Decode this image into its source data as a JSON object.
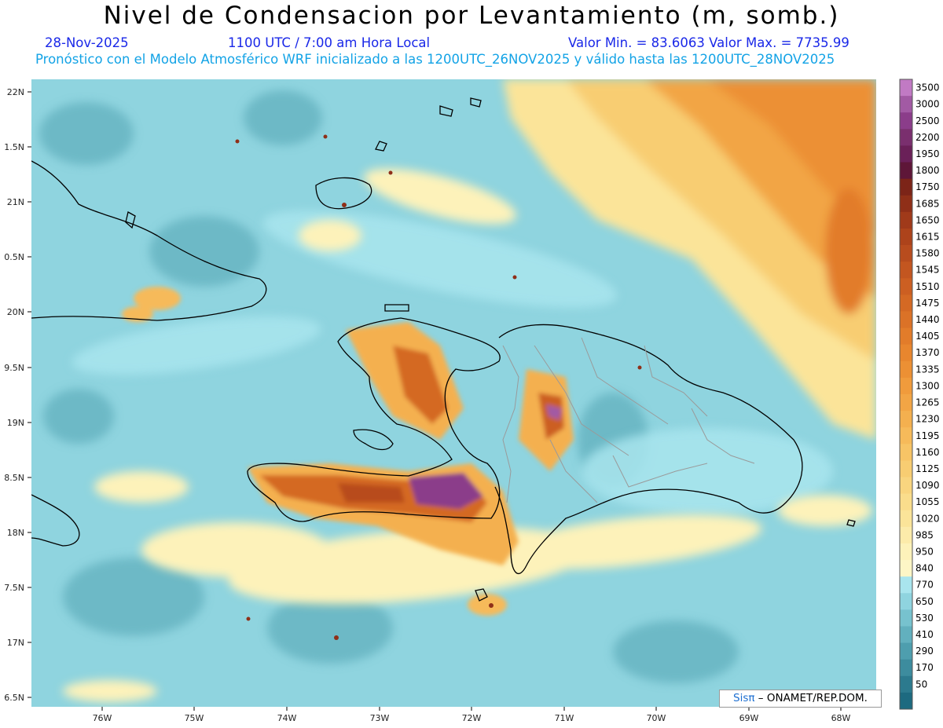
{
  "header": {
    "title": "Nivel de Condensacion por Levantamiento (m, somb.)",
    "date": "28-Nov-2025",
    "time": "1100 UTC / 7:00 am Hora Local",
    "min_max": "Valor Min. = 83.6063  Valor Max. = 7735.99",
    "forecast": "Pronóstico con el Modelo Atmosférico WRF inicializado a las 1200UTC_26NOV2025 y válido hasta las  1200UTC_28NOV2025"
  },
  "credit": {
    "logo": "Sisπ",
    "text": "– ONAMET/REP.DOM."
  },
  "axes": {
    "lat_labels": [
      "22N",
      "1.5N",
      "21N",
      "0.5N",
      "20N",
      "9.5N",
      "19N",
      "8.5N",
      "18N",
      "7.5N",
      "17N",
      "6.5N"
    ],
    "lon_labels": [
      "76W",
      "75W",
      "74W",
      "73W",
      "72W",
      "71W",
      "70W",
      "69W",
      "68W"
    ]
  },
  "colorbar": [
    {
      "label": "3500",
      "color": "#c17ac4"
    },
    {
      "label": "3000",
      "color": "#a25aa4"
    },
    {
      "label": "2500",
      "color": "#8b3d8a"
    },
    {
      "label": "2200",
      "color": "#7a2f6e"
    },
    {
      "label": "1950",
      "color": "#6a2058"
    },
    {
      "label": "1800",
      "color": "#5e1638"
    },
    {
      "label": "1750",
      "color": "#7c2418"
    },
    {
      "label": "1685",
      "color": "#8f2f18"
    },
    {
      "label": "1650",
      "color": "#a03a1a"
    },
    {
      "label": "1615",
      "color": "#ad431b"
    },
    {
      "label": "1580",
      "color": "#b84c1e"
    },
    {
      "label": "1545",
      "color": "#c35620"
    },
    {
      "label": "1510",
      "color": "#cc5f22"
    },
    {
      "label": "1475",
      "color": "#d46924"
    },
    {
      "label": "1440",
      "color": "#db7227"
    },
    {
      "label": "1405",
      "color": "#e27c2a"
    },
    {
      "label": "1370",
      "color": "#e8862e"
    },
    {
      "label": "1335",
      "color": "#ec9034"
    },
    {
      "label": "1300",
      "color": "#f09b3c"
    },
    {
      "label": "1265",
      "color": "#f2a545"
    },
    {
      "label": "1230",
      "color": "#f4b04f"
    },
    {
      "label": "1195",
      "color": "#f6ba5a"
    },
    {
      "label": "1160",
      "color": "#f7c466"
    },
    {
      "label": "1125",
      "color": "#f8cd72"
    },
    {
      "label": "1090",
      "color": "#f9d57f"
    },
    {
      "label": "1055",
      "color": "#fadd8c"
    },
    {
      "label": "1020",
      "color": "#fbe499"
    },
    {
      "label": "985",
      "color": "#fcebaa"
    },
    {
      "label": "950",
      "color": "#fdf2ba"
    },
    {
      "label": "840",
      "color": "#fdf6c6"
    },
    {
      "label": "770",
      "color": "#a9e5ee"
    },
    {
      "label": "650",
      "color": "#8fd4df"
    },
    {
      "label": "530",
      "color": "#77c2ce"
    },
    {
      "label": "410",
      "color": "#62b0be"
    },
    {
      "label": "290",
      "color": "#4e9eae"
    },
    {
      "label": "170",
      "color": "#3d8c9e"
    },
    {
      "label": "50",
      "color": "#2c7a8e"
    },
    {
      "label": "",
      "color": "#1d6a80"
    }
  ],
  "colors": {
    "background_field": "#8fd4df",
    "coastline": "#000000",
    "provinces": "#9a9a9a"
  }
}
